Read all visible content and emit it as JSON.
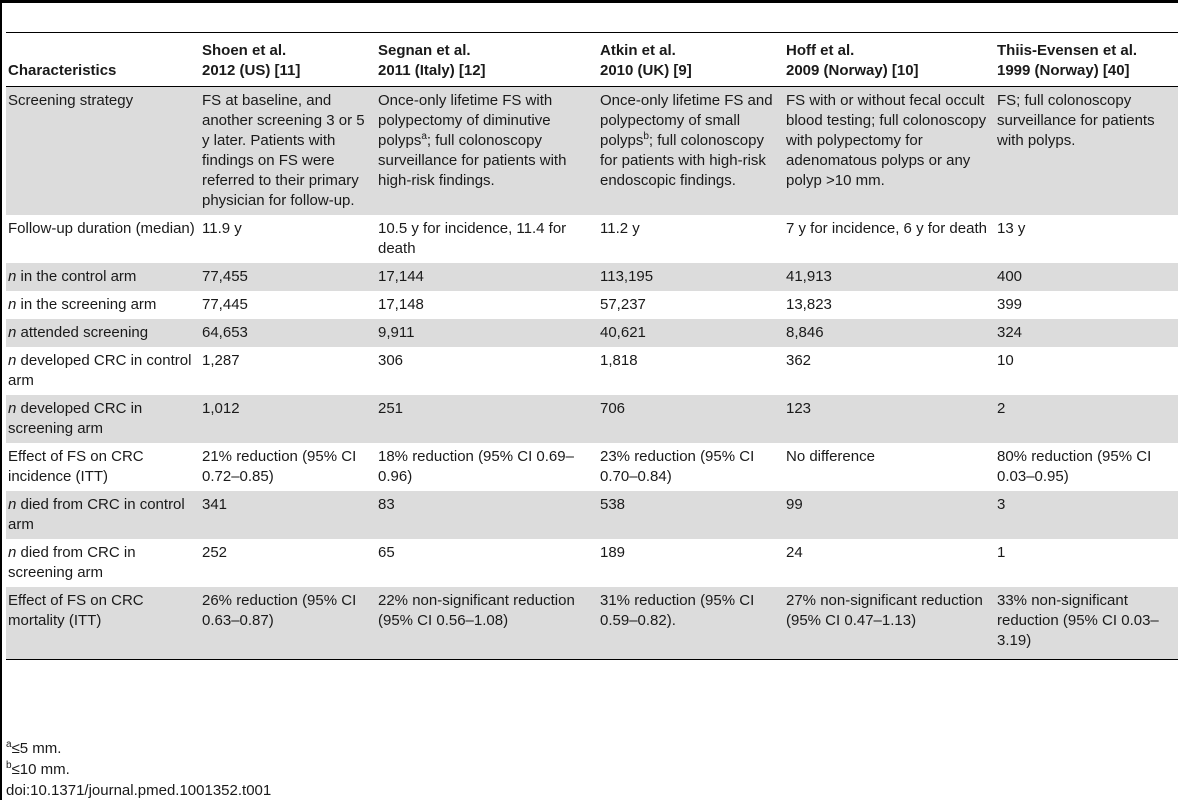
{
  "header": {
    "characteristics": "Characteristics",
    "studies": [
      {
        "line1": "Shoen et al.",
        "line2": "2012 (US) [11]"
      },
      {
        "line1": "Segnan et al.",
        "line2": "2011 (Italy) [12]"
      },
      {
        "line1": "Atkin et al.",
        "line2": "2010 (UK) [9]"
      },
      {
        "line1": "Hoff et al.",
        "line2": "2009 (Norway) [10]"
      },
      {
        "line1": "Thiis-Evensen et al.",
        "line2": "1999 (Norway) [40]"
      }
    ]
  },
  "rows": [
    {
      "label": "Screening strategy",
      "cells": [
        "FS at baseline, and another screening 3 or 5 y later. Patients with findings on FS were referred to their primary physician for follow-up.",
        "",
        "",
        "FS with or without fecal occult blood testing; full colonoscopy with polypectomy for adenomatous polyps or any polyp >10 mm.",
        "FS; full colonoscopy surveillance for patients with polyps."
      ],
      "segnan_pre": "Once-only lifetime FS with polypectomy of diminutive polyps",
      "segnan_sup": "a",
      "segnan_post": "; full colonoscopy surveillance for patients with high-risk findings.",
      "atkin_pre": "Once-only lifetime FS and polypectomy of small polyps",
      "atkin_sup": "b",
      "atkin_post": "; full colonoscopy for patients with high-risk endoscopic findings."
    },
    {
      "label": "Follow-up duration (median)",
      "cells": [
        "11.9 y",
        "10.5 y for incidence, 11.4 for death",
        "11.2 y",
        "7 y for incidence, 6 y for death",
        "13 y"
      ]
    },
    {
      "label_n": "n",
      "label_rest": " in the control arm",
      "cells": [
        "77,455",
        "17,144",
        "113,195",
        "41,913",
        "400"
      ]
    },
    {
      "label_n": "n",
      "label_rest": " in the screening arm",
      "cells": [
        "77,445",
        "17,148",
        "57,237",
        "13,823",
        "399"
      ]
    },
    {
      "label_n": "n",
      "label_rest": " attended screening",
      "cells": [
        "64,653",
        "9,911",
        "40,621",
        "8,846",
        "324"
      ]
    },
    {
      "label_n": "n",
      "label_rest": " developed CRC in control arm",
      "cells": [
        "1,287",
        "306",
        "1,818",
        "362",
        "10"
      ]
    },
    {
      "label_n": "n",
      "label_rest": " developed CRC in screening arm",
      "cells": [
        "1,012",
        "251",
        "706",
        "123",
        "2"
      ]
    },
    {
      "label": "Effect of FS on CRC incidence (ITT)",
      "cells": [
        "21% reduction (95% CI 0.72–0.85)",
        "18% reduction (95% CI 0.69–0.96)",
        "23% reduction (95% CI 0.70–0.84)",
        "No difference",
        "80% reduction (95% CI 0.03–0.95)"
      ]
    },
    {
      "label_n": "n",
      "label_rest": " died from CRC in control arm",
      "cells": [
        "341",
        "83",
        "538",
        "99",
        "3"
      ]
    },
    {
      "label_n": "n",
      "label_rest": " died from CRC in screening arm",
      "cells": [
        "252",
        "65",
        "189",
        "24",
        "1"
      ]
    },
    {
      "label": "Effect of FS on CRC mortality (ITT)",
      "cells": [
        "26% reduction (95% CI 0.63–0.87)",
        "22% non-significant reduction (95% CI 0.56–1.08)",
        "31% reduction (95% CI 0.59–0.82).",
        "27% non-significant reduction (95% CI 0.47–1.13)",
        "33% non-significant reduction (95% CI 0.03–3.19)"
      ]
    }
  ],
  "footnotes": {
    "a_mark": "a",
    "a_text": "≤5 mm.",
    "b_mark": "b",
    "b_text": "≤10 mm.",
    "doi": "doi:10.1371/journal.pmed.1001352.t001"
  }
}
